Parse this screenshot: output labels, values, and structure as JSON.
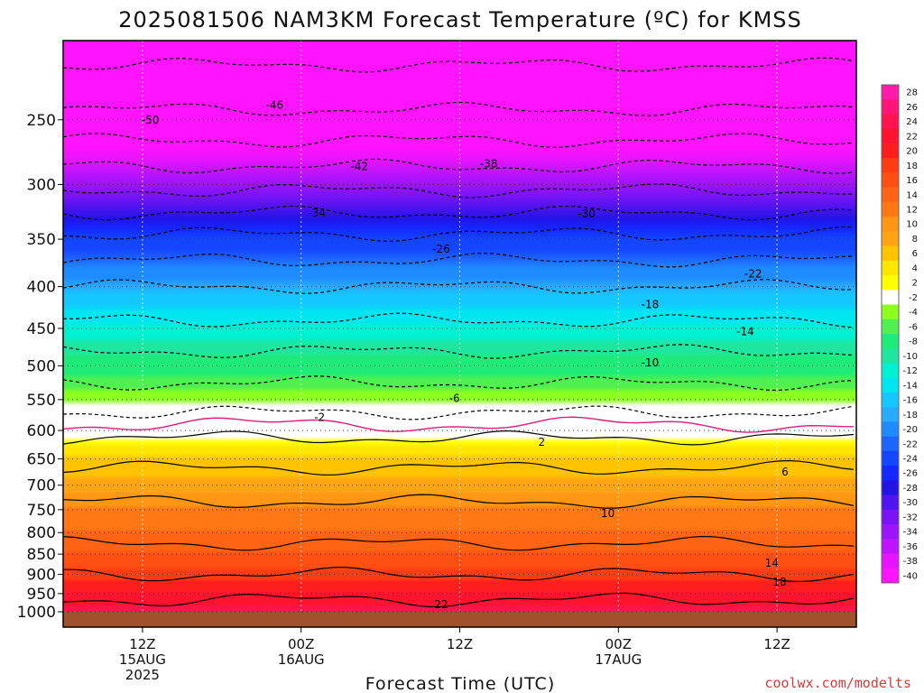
{
  "chart_data": {
    "type": "heatmap",
    "title": "2025081506 NAM3KM Forecast Temperature (ºC) for KMSS",
    "xlabel": "Forecast Time (UTC)",
    "credit": "coolwx.com/modelts",
    "y_ticks": [
      "250",
      "300",
      "350",
      "400",
      "450",
      "500",
      "550",
      "600",
      "650",
      "700",
      "750",
      "800",
      "850",
      "900",
      "950",
      "1000"
    ],
    "y_values": [
      250,
      300,
      350,
      400,
      450,
      500,
      550,
      600,
      650,
      700,
      750,
      800,
      850,
      900,
      950,
      1000
    ],
    "ylim": [
      200,
      1000
    ],
    "x_ticks": [
      {
        "line1": "12Z",
        "line2": "15AUG",
        "line3": "2025",
        "hour": 6
      },
      {
        "line1": "00Z",
        "line2": "16AUG",
        "line3": "",
        "hour": 18
      },
      {
        "line1": "12Z",
        "line2": "",
        "line3": "",
        "hour": 30
      },
      {
        "line1": "00Z",
        "line2": "17AUG",
        "line3": "",
        "hour": 42
      },
      {
        "line1": "12Z",
        "line2": "",
        "line3": "",
        "hour": 54
      }
    ],
    "xlim": [
      0,
      60
    ],
    "colorbar_labels": [
      "28",
      "26",
      "24",
      "22",
      "20",
      "18",
      "16",
      "14",
      "12",
      "10",
      "8",
      "6",
      "4",
      "2",
      "-2",
      "-4",
      "-6",
      "-8",
      "-10",
      "-12",
      "-14",
      "-16",
      "-18",
      "-20",
      "-22",
      "-24",
      "-26",
      "-28",
      "-30",
      "-32",
      "-34",
      "-36",
      "-38",
      "-40"
    ],
    "colorbar_colors": [
      "#ff1aa8",
      "#ff1478",
      "#ff1450",
      "#ff1430",
      "#ff1e1e",
      "#ff3c14",
      "#ff5014",
      "#ff6414",
      "#ff7814",
      "#ff9614",
      "#ffa514",
      "#ffc300",
      "#ffe600",
      "#ffff00",
      "#ffffff",
      "#8cff1e",
      "#50f050",
      "#1eeb78",
      "#1ee6a0",
      "#00f0d2",
      "#00e6f0",
      "#14c8ff",
      "#28aaff",
      "#1e8cff",
      "#1e64ff",
      "#1446ff",
      "#1428ff",
      "#2314e6",
      "#5014f0",
      "#7814f5",
      "#9b14fa",
      "#be14ff",
      "#e614ff",
      "#ff14ff"
    ],
    "profile": {
      "pressure": [
        200,
        250,
        300,
        350,
        400,
        450,
        500,
        550,
        600,
        650,
        700,
        750,
        800,
        850,
        900,
        950,
        1000
      ],
      "temperature": [
        -52,
        -45,
        -35,
        -25,
        -18,
        -13,
        -8,
        -4,
        1,
        5,
        8,
        11,
        13,
        15,
        18,
        21,
        24
      ]
    },
    "contour_labels": [
      {
        "text": "-50",
        "t": 6.6,
        "p": 250
      },
      {
        "text": "-46",
        "t": 16,
        "p": 240
      },
      {
        "text": "-42",
        "t": 22.4,
        "p": 285
      },
      {
        "text": "-38",
        "t": 32.2,
        "p": 283
      },
      {
        "text": "-34",
        "t": 19.2,
        "p": 325
      },
      {
        "text": "-30",
        "t": 39.6,
        "p": 326
      },
      {
        "text": "-26",
        "t": 28.6,
        "p": 360
      },
      {
        "text": "-22",
        "t": 52.2,
        "p": 386
      },
      {
        "text": "-18",
        "t": 44.4,
        "p": 421
      },
      {
        "text": "-14",
        "t": 51.6,
        "p": 454
      },
      {
        "text": "-10",
        "t": 44.4,
        "p": 496
      },
      {
        "text": "-6",
        "t": 29.6,
        "p": 548
      },
      {
        "text": "-2",
        "t": 19.4,
        "p": 578
      },
      {
        "text": "2",
        "t": 36.2,
        "p": 620
      },
      {
        "text": "6",
        "t": 54.6,
        "p": 674
      },
      {
        "text": "10",
        "t": 41.2,
        "p": 758
      },
      {
        "text": "14",
        "t": 53.6,
        "p": 872
      },
      {
        "text": "18",
        "t": 54.2,
        "p": 920
      },
      {
        "text": "22",
        "t": 28.6,
        "p": 980
      }
    ]
  }
}
